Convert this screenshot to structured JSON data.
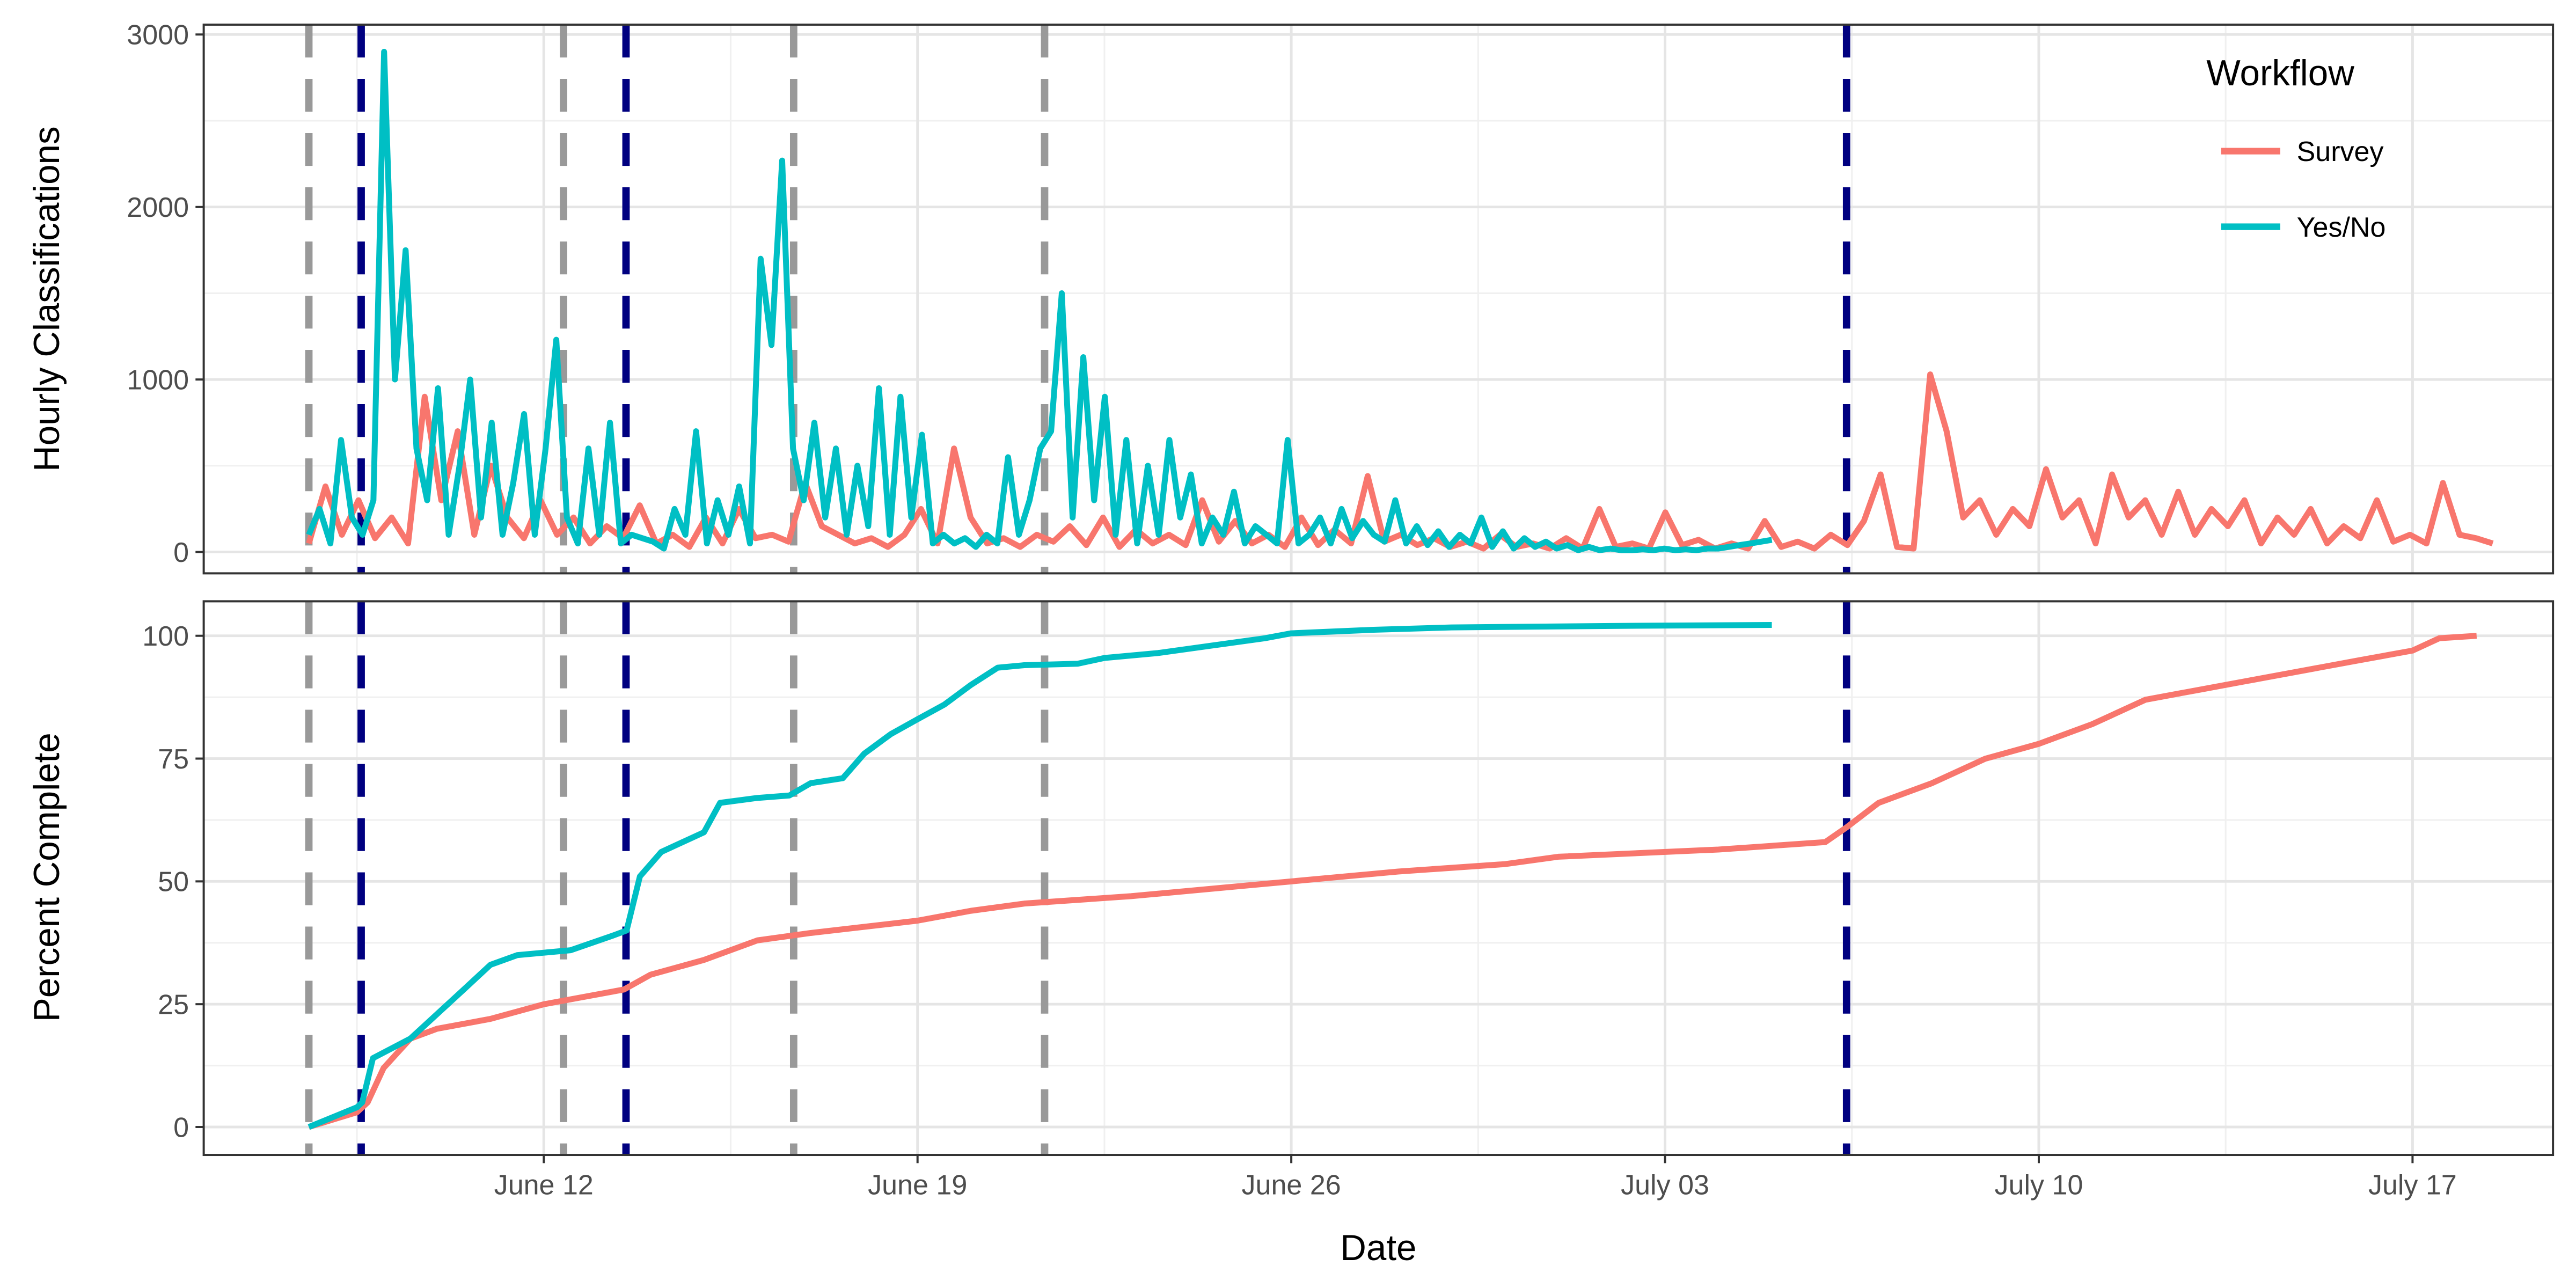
{
  "chart_data": [
    {
      "type": "line",
      "panel": "top",
      "ylabel": "Hourly Classifications",
      "x_unit": "days since June 1",
      "yticks": [
        0,
        1000,
        2000,
        3000
      ],
      "ytick_labels": [
        "0",
        "1000",
        "2000",
        "3000"
      ],
      "ylim": [
        -150,
        3050
      ],
      "xlim": [
        4.63,
        48.6
      ],
      "grid": true,
      "series": [
        {
          "name": "Survey",
          "color": "#F8766D",
          "x_start": 6.6,
          "x_end": 47.5,
          "values": [
            50,
            380,
            100,
            300,
            80,
            200,
            50,
            900,
            300,
            700,
            100,
            500,
            200,
            80,
            300,
            100,
            200,
            50,
            150,
            80,
            270,
            50,
            100,
            30,
            200,
            50,
            250,
            80,
            100,
            60,
            400,
            150,
            100,
            50,
            80,
            30,
            100,
            250,
            50,
            600,
            200,
            50,
            80,
            30,
            100,
            60,
            150,
            40,
            200,
            30,
            130,
            50,
            100,
            40,
            300,
            60,
            180,
            50,
            100,
            30,
            200,
            40,
            130,
            50,
            440,
            60,
            100,
            40,
            80,
            30,
            60,
            20,
            100,
            30,
            50,
            20,
            80,
            20,
            250,
            30,
            50,
            20,
            230,
            40,
            70,
            20,
            50,
            20,
            180,
            30,
            60,
            20,
            100,
            40,
            180,
            450,
            30,
            20,
            1030,
            700,
            200,
            300,
            100,
            250,
            150,
            480,
            200,
            300,
            50,
            450,
            200,
            300,
            100,
            350,
            100,
            250,
            150,
            300,
            50,
            200,
            100,
            250,
            50,
            150,
            80,
            300,
            60,
            100,
            50,
            400,
            100,
            80,
            50
          ]
        },
        {
          "name": "Yes/No",
          "color": "#00BFC4",
          "x_start": 6.6,
          "x_end": 34.0,
          "values": [
            100,
            250,
            50,
            650,
            200,
            100,
            300,
            2900,
            1000,
            1750,
            600,
            300,
            950,
            100,
            500,
            1000,
            200,
            750,
            100,
            400,
            800,
            100,
            600,
            1230,
            200,
            50,
            600,
            100,
            750,
            50,
            100,
            80,
            60,
            20,
            250,
            100,
            700,
            50,
            300,
            100,
            380,
            50,
            1700,
            1200,
            2270,
            600,
            300,
            750,
            200,
            600,
            100,
            500,
            150,
            950,
            100,
            900,
            200,
            680,
            50,
            100,
            50,
            80,
            30,
            100,
            50,
            550,
            100,
            300,
            600,
            700,
            1500,
            200,
            1130,
            300,
            900,
            100,
            650,
            50,
            500,
            100,
            650,
            200,
            450,
            50,
            200,
            100,
            350,
            50,
            150,
            100,
            50,
            650,
            50,
            100,
            200,
            50,
            250,
            80,
            180,
            100,
            60,
            300,
            50,
            150,
            40,
            120,
            30,
            100,
            50,
            200,
            30,
            120,
            20,
            80,
            30,
            60,
            20,
            40,
            10,
            30,
            10,
            20,
            10,
            10,
            15,
            10,
            20,
            10,
            15,
            10,
            20,
            20,
            30,
            40,
            50,
            60,
            70
          ]
        }
      ]
    },
    {
      "type": "line",
      "panel": "bottom",
      "ylabel": "Percent Complete",
      "xlabel": "Date",
      "x_unit": "days since June 1",
      "yticks": [
        0,
        25,
        50,
        75,
        100
      ],
      "ytick_labels": [
        "0",
        "25",
        "50",
        "75",
        "100"
      ],
      "ylim": [
        -5,
        105
      ],
      "xticks": [
        11,
        18,
        25,
        32,
        39,
        46
      ],
      "xtick_labels": [
        "June 12",
        "June 19",
        "June 26",
        "July 03",
        "July 10",
        "July 17"
      ],
      "xlim": [
        4.63,
        48.6
      ],
      "grid": true,
      "series": [
        {
          "name": "Survey",
          "color": "#F8766D",
          "points": [
            [
              6.6,
              0
            ],
            [
              7.5,
              3
            ],
            [
              7.7,
              5
            ],
            [
              8,
              12
            ],
            [
              8.5,
              18
            ],
            [
              9,
              20
            ],
            [
              10,
              22
            ],
            [
              11,
              25
            ],
            [
              12.5,
              28
            ],
            [
              13,
              31
            ],
            [
              14,
              34
            ],
            [
              15,
              38
            ],
            [
              16,
              39.5
            ],
            [
              18,
              42
            ],
            [
              19,
              44
            ],
            [
              20,
              45.5
            ],
            [
              22,
              47
            ],
            [
              24,
              49
            ],
            [
              25,
              50
            ],
            [
              27,
              52
            ],
            [
              29,
              53.5
            ],
            [
              30,
              55
            ],
            [
              33,
              56.5
            ],
            [
              35,
              58
            ],
            [
              35.4,
              61
            ],
            [
              36,
              66
            ],
            [
              37,
              70
            ],
            [
              38,
              75
            ],
            [
              39,
              78
            ],
            [
              40,
              82
            ],
            [
              41,
              87
            ],
            [
              42,
              89
            ],
            [
              43,
              91
            ],
            [
              44,
              93
            ],
            [
              45,
              95
            ],
            [
              46,
              97
            ],
            [
              46.5,
              99.5
            ],
            [
              47.2,
              100
            ]
          ]
        },
        {
          "name": "Yes/No",
          "color": "#00BFC4",
          "points": [
            [
              6.6,
              0
            ],
            [
              7.5,
              4
            ],
            [
              7.6,
              5
            ],
            [
              7.8,
              14
            ],
            [
              8.5,
              18
            ],
            [
              9.5,
              28
            ],
            [
              10,
              33
            ],
            [
              10.5,
              35
            ],
            [
              11.5,
              36
            ],
            [
              12.3,
              39
            ],
            [
              12.55,
              40
            ],
            [
              12.8,
              51
            ],
            [
              13.2,
              56
            ],
            [
              14,
              60
            ],
            [
              14.3,
              66
            ],
            [
              15,
              67
            ],
            [
              15.6,
              67.5
            ],
            [
              16,
              70
            ],
            [
              16.6,
              71
            ],
            [
              17,
              76
            ],
            [
              17.5,
              80
            ],
            [
              18,
              83
            ],
            [
              18.5,
              86
            ],
            [
              19,
              90
            ],
            [
              19.5,
              93.5
            ],
            [
              20,
              94
            ],
            [
              21,
              94.3
            ],
            [
              21.5,
              95.5
            ],
            [
              22.5,
              96.5
            ],
            [
              23.5,
              98
            ],
            [
              24.5,
              99.5
            ],
            [
              25,
              100.5
            ],
            [
              26.5,
              101.2
            ],
            [
              28,
              101.7
            ],
            [
              31,
              102
            ],
            [
              34,
              102.2
            ]
          ]
        }
      ]
    }
  ],
  "event_lines": [
    {
      "x": 6.6,
      "color": "#999999"
    },
    {
      "x": 7.58,
      "color": "#000080"
    },
    {
      "x": 11.37,
      "color": "#999999"
    },
    {
      "x": 12.54,
      "color": "#000080"
    },
    {
      "x": 15.68,
      "color": "#999999"
    },
    {
      "x": 20.38,
      "color": "#999999"
    },
    {
      "x": 35.4,
      "color": "#000080"
    }
  ],
  "legend": {
    "title": "Workflow",
    "placement": "top-right",
    "items": [
      {
        "label": "Survey",
        "color": "#F8766D"
      },
      {
        "label": "Yes/No",
        "color": "#00BFC4"
      }
    ]
  }
}
